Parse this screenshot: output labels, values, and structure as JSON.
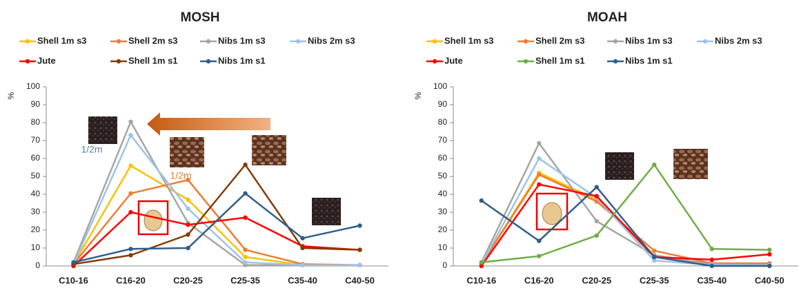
{
  "chart_data": [
    {
      "type": "line",
      "title": "MOSH",
      "y_label": "%",
      "categories": [
        "C10-16",
        "C16-20",
        "C20-25",
        "C25-35",
        "C35-40",
        "C40-50"
      ],
      "ylim": [
        0,
        100
      ],
      "yticks": [
        0,
        10,
        20,
        30,
        40,
        50,
        60,
        70,
        80,
        90,
        100
      ],
      "series": [
        {
          "name": "Shell 1m s3",
          "color": "#ffc000",
          "values": [
            1,
            56,
            37,
            5,
            0.5,
            0.5
          ]
        },
        {
          "name": "Shell 2m s3",
          "color": "#ed7d31",
          "values": [
            1,
            40.5,
            48,
            9,
            1,
            0.5
          ]
        },
        {
          "name": "Nibs 1m s3",
          "color": "#a5a5a5",
          "values": [
            2,
            80.5,
            24,
            0.5,
            0.5,
            0.5
          ]
        },
        {
          "name": "Nibs 2m s3",
          "color": "#9dc3e6",
          "values": [
            1,
            73,
            32,
            2,
            0.5,
            0.5
          ]
        },
        {
          "name": "Jute",
          "color": "#ff0000",
          "values": [
            0,
            30,
            23,
            27,
            11,
            9
          ]
        },
        {
          "name": "Shell 1m s1",
          "color": "#843c0c",
          "values": [
            1,
            6,
            17.5,
            56.5,
            10,
            9
          ]
        },
        {
          "name": "Nibs  1m s1",
          "color": "#2e5f8a",
          "values": [
            2,
            9.5,
            10,
            40.5,
            15.5,
            22.5
          ]
        }
      ],
      "annotations": [
        "1/2m",
        "1/2m"
      ]
    },
    {
      "type": "line",
      "title": "MOAH",
      "y_label": "%",
      "categories": [
        "C10-16",
        "C16-20",
        "C20-25",
        "C25-35",
        "C35-40",
        "C40-50"
      ],
      "ylim": [
        0,
        100
      ],
      "yticks": [
        0,
        10,
        20,
        30,
        40,
        50,
        60,
        70,
        80,
        90,
        100
      ],
      "series": [
        {
          "name": "Shell 1m s3",
          "color": "#ffc000",
          "values": [
            1,
            52,
            37,
            6,
            1,
            1
          ]
        },
        {
          "name": "Shell 2m s3",
          "color": "#ed7d31",
          "values": [
            1,
            51,
            36,
            8.5,
            1.5,
            1.5
          ]
        },
        {
          "name": "Nibs 1m s3",
          "color": "#a5a5a5",
          "values": [
            2,
            68.5,
            25,
            6,
            1,
            0.5
          ]
        },
        {
          "name": "Nibs 2m s3",
          "color": "#9dc3e6",
          "values": [
            1,
            60,
            38,
            3,
            0.5,
            0.5
          ]
        },
        {
          "name": "Jute",
          "color": "#ff0000",
          "values": [
            0,
            45.5,
            39,
            5,
            3.5,
            6.5
          ]
        },
        {
          "name": "Shell 1m s1",
          "color": "#70ad47",
          "values": [
            2,
            5.5,
            17,
            56.5,
            9.5,
            9
          ]
        },
        {
          "name": "Nibs  1m s1",
          "color": "#2e5f8a",
          "values": [
            36.5,
            14,
            44,
            5,
            0,
            0
          ]
        }
      ]
    }
  ]
}
